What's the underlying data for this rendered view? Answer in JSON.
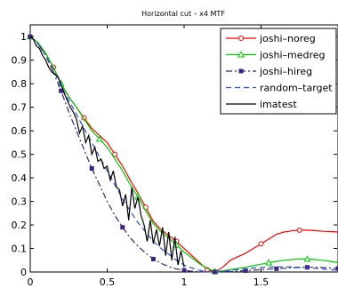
{
  "chart_data": {
    "type": "line",
    "title": "Horizontal cut – x4 MTF",
    "xlabel": "",
    "ylabel": "",
    "xlim": [
      0,
      2
    ],
    "ylim": [
      0,
      1.05
    ],
    "x_ticks": [
      "0",
      "0.5",
      "1",
      "1.5"
    ],
    "y_ticks": [
      "0",
      "0.1",
      "0.2",
      "0.3",
      "0.4",
      "0.5",
      "0.6",
      "0.7",
      "0.8",
      "0.9",
      "1"
    ],
    "grid": false,
    "legend_position": "top-right",
    "series": [
      {
        "name": "joshi–noreg",
        "color": "#ff0000",
        "dash": "solid",
        "marker": "circle",
        "x": [
          0,
          0.05,
          0.1,
          0.15,
          0.2,
          0.25,
          0.3,
          0.35,
          0.4,
          0.45,
          0.5,
          0.55,
          0.6,
          0.65,
          0.7,
          0.75,
          0.8,
          0.85,
          0.9,
          0.95,
          1.0,
          1.05,
          1.1,
          1.15,
          1.2,
          1.25,
          1.3,
          1.35,
          1.4,
          1.45,
          1.5,
          1.55,
          1.6,
          1.65,
          1.7,
          1.75,
          1.8,
          1.85,
          1.9,
          1.95,
          2.0
        ],
        "y": [
          1.0,
          0.975,
          0.93,
          0.87,
          0.8,
          0.745,
          0.7,
          0.655,
          0.61,
          0.58,
          0.55,
          0.5,
          0.45,
          0.39,
          0.335,
          0.275,
          0.215,
          0.18,
          0.155,
          0.13,
          0.1,
          0.07,
          0.04,
          0.01,
          0.0,
          0.02,
          0.05,
          0.065,
          0.08,
          0.1,
          0.12,
          0.14,
          0.16,
          0.17,
          0.175,
          0.178,
          0.178,
          0.176,
          0.173,
          0.172,
          0.17
        ],
        "marker_x": [
          0,
          0.15,
          0.35,
          0.55,
          0.75,
          0.95,
          1.15,
          1.5,
          1.75
        ]
      },
      {
        "name": "joshi–medreg",
        "color": "#00cc00",
        "dash": "solid",
        "marker": "triangle",
        "x": [
          0,
          0.05,
          0.1,
          0.15,
          0.2,
          0.25,
          0.3,
          0.35,
          0.4,
          0.45,
          0.5,
          0.55,
          0.6,
          0.65,
          0.7,
          0.75,
          0.8,
          0.85,
          0.9,
          0.95,
          1.0,
          1.05,
          1.1,
          1.15,
          1.2,
          1.25,
          1.3,
          1.35,
          1.4,
          1.45,
          1.5,
          1.55,
          1.6,
          1.65,
          1.7,
          1.75,
          1.8,
          1.85,
          1.9,
          1.95,
          2.0
        ],
        "y": [
          1.0,
          0.975,
          0.93,
          0.87,
          0.8,
          0.745,
          0.7,
          0.65,
          0.6,
          0.565,
          0.53,
          0.48,
          0.43,
          0.37,
          0.32,
          0.26,
          0.205,
          0.17,
          0.145,
          0.115,
          0.085,
          0.06,
          0.035,
          0.015,
          0.003,
          0.005,
          0.01,
          0.015,
          0.02,
          0.027,
          0.033,
          0.04,
          0.045,
          0.05,
          0.053,
          0.055,
          0.055,
          0.053,
          0.05,
          0.045,
          0.04
        ],
        "marker_x": [
          0,
          0.2,
          0.45,
          0.7,
          0.95,
          1.2,
          1.55,
          1.8
        ]
      },
      {
        "name": "joshi–hireg",
        "color": "#3a2380",
        "dash": "dashdot",
        "marker": "square",
        "x": [
          0,
          0.05,
          0.1,
          0.15,
          0.2,
          0.25,
          0.3,
          0.35,
          0.4,
          0.45,
          0.5,
          0.55,
          0.6,
          0.65,
          0.7,
          0.75,
          0.8,
          0.85,
          0.9,
          0.95,
          1.0,
          1.05,
          1.1,
          1.15,
          1.2,
          1.25,
          1.3,
          1.35,
          1.4,
          1.45,
          1.5,
          1.55,
          1.6,
          1.65,
          1.7,
          1.75,
          1.8,
          1.85,
          1.9,
          1.95,
          2.0
        ],
        "y": [
          1.0,
          0.97,
          0.92,
          0.85,
          0.77,
          0.68,
          0.6,
          0.52,
          0.44,
          0.37,
          0.3,
          0.24,
          0.19,
          0.145,
          0.11,
          0.08,
          0.055,
          0.037,
          0.023,
          0.013,
          0.007,
          0.003,
          0.001,
          0.0,
          0.0,
          0.001,
          0.002,
          0.004,
          0.006,
          0.008,
          0.01,
          0.012,
          0.014,
          0.016,
          0.018,
          0.019,
          0.02,
          0.02,
          0.019,
          0.017,
          0.015
        ],
        "marker_x": [
          0,
          0.2,
          0.4,
          0.6,
          0.8,
          1.0,
          1.2,
          1.4,
          1.6,
          1.8,
          2.0
        ]
      },
      {
        "name": "random–target",
        "color": "#2a52d6",
        "dash": "dashed",
        "marker": "none",
        "x": [
          0,
          0.05,
          0.1,
          0.15,
          0.2,
          0.25,
          0.3,
          0.35,
          0.4,
          0.45,
          0.5,
          0.55,
          0.6,
          0.65,
          0.7,
          0.75,
          0.8,
          0.85,
          0.9,
          0.95,
          1.0,
          1.05,
          1.1,
          1.15,
          1.2,
          1.25,
          1.3,
          1.35,
          1.4,
          1.45,
          1.5,
          1.55,
          1.6,
          1.65,
          1.7,
          1.75,
          1.8,
          1.85,
          1.9,
          1.95,
          2.0
        ],
        "y": [
          1.0,
          0.97,
          0.92,
          0.86,
          0.79,
          0.73,
          0.67,
          0.61,
          0.55,
          0.49,
          0.43,
          0.37,
          0.31,
          0.26,
          0.21,
          0.17,
          0.13,
          0.1,
          0.075,
          0.05,
          0.03,
          0.017,
          0.007,
          0.001,
          0.0,
          0.003,
          0.007,
          0.011,
          0.014,
          0.017,
          0.019,
          0.021,
          0.022,
          0.022,
          0.021,
          0.02,
          0.018,
          0.016,
          0.013,
          0.01,
          0.007
        ]
      },
      {
        "name": "imatest",
        "color": "#000000",
        "dash": "solid",
        "marker": "none",
        "x": [
          0,
          0.02,
          0.04,
          0.06,
          0.08,
          0.1,
          0.12,
          0.14,
          0.16,
          0.18,
          0.2,
          0.22,
          0.24,
          0.26,
          0.28,
          0.3,
          0.32,
          0.34,
          0.36,
          0.38,
          0.4,
          0.42,
          0.44,
          0.46,
          0.48,
          0.5,
          0.52,
          0.54,
          0.56,
          0.58,
          0.6,
          0.62,
          0.64,
          0.66,
          0.68,
          0.7,
          0.72,
          0.74,
          0.76,
          0.78,
          0.8,
          0.82,
          0.84,
          0.86,
          0.88,
          0.9,
          0.92,
          0.94,
          0.96,
          0.98,
          1.0
        ],
        "y": [
          1.0,
          0.99,
          0.96,
          0.95,
          0.92,
          0.9,
          0.87,
          0.85,
          0.84,
          0.83,
          0.8,
          0.76,
          0.73,
          0.7,
          0.68,
          0.65,
          0.59,
          0.62,
          0.55,
          0.58,
          0.5,
          0.53,
          0.47,
          0.48,
          0.44,
          0.45,
          0.39,
          0.43,
          0.36,
          0.35,
          0.28,
          0.33,
          0.22,
          0.36,
          0.27,
          0.32,
          0.24,
          0.2,
          0.13,
          0.22,
          0.12,
          0.18,
          0.11,
          0.19,
          0.07,
          0.17,
          0.05,
          0.15,
          0.03,
          0.09,
          0.02
        ]
      }
    ]
  }
}
